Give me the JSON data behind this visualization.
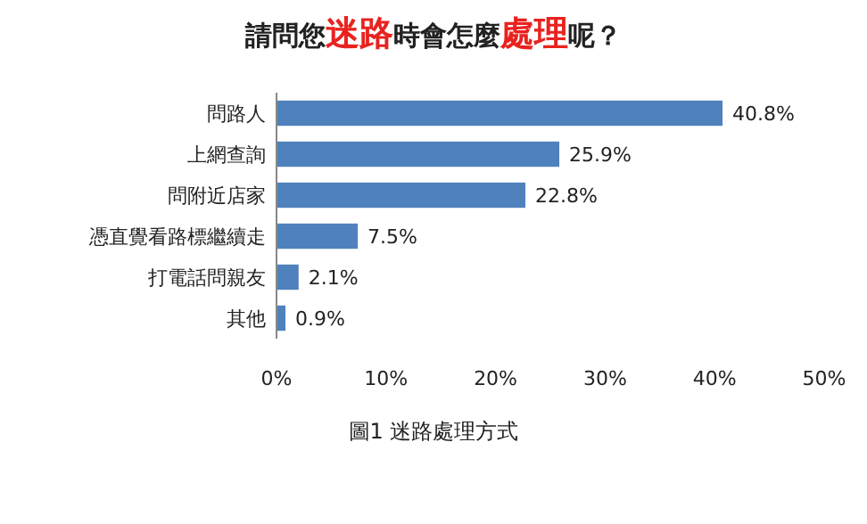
{
  "chart_data": {
    "type": "bar",
    "orientation": "horizontal",
    "title": "請問您**迷路**時會怎麼**處理**呢？",
    "categories": [
      "問路人",
      "上網查詢",
      "問附近店家",
      "憑直覺看路標繼續走",
      "打電話問親友",
      "其他"
    ],
    "values": [
      40.8,
      25.9,
      22.8,
      7.5,
      2.1,
      0.9
    ],
    "value_labels": [
      "40.8%",
      "25.9%",
      "22.8%",
      "7.5%",
      "2.1%",
      "0.9%"
    ],
    "color": "#4f81bd",
    "xlim": [
      0,
      50
    ],
    "xticks": [
      {
        "value": 0,
        "label": "0%"
      },
      {
        "value": 10,
        "label": "10%"
      },
      {
        "value": 20,
        "label": "20%"
      },
      {
        "value": 30,
        "label": "30%"
      },
      {
        "value": 40,
        "label": "40%"
      },
      {
        "value": 50,
        "label": "50%"
      }
    ],
    "grid": false,
    "annotations": [
      "圖1 迷路處理方式"
    ]
  }
}
